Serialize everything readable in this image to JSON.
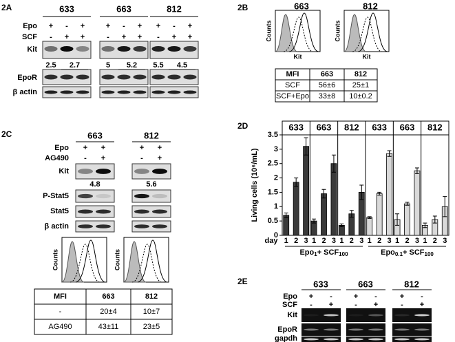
{
  "panel_2a": {
    "label": "2A",
    "row_labels": {
      "epo": "Epo",
      "scf": "SCF",
      "kit": "Kit",
      "epor": "EpoR",
      "actin": "β actin"
    },
    "groups": [
      {
        "name": "633",
        "epo": [
          "+",
          "-",
          "+"
        ],
        "scf": [
          "-",
          "+",
          "+"
        ],
        "ratios": [
          "2.5",
          "2.7"
        ]
      },
      {
        "name": "663",
        "epo": [
          "+",
          "-",
          "+"
        ],
        "scf": [
          "-",
          "+",
          "+"
        ],
        "ratios": [
          "5",
          "5.2"
        ]
      },
      {
        "name": "812",
        "epo": [
          "+",
          "-",
          "+"
        ],
        "scf": [
          "-",
          "+",
          "+"
        ],
        "ratios": [
          "5.5",
          "4.5"
        ]
      }
    ]
  },
  "panel_2b": {
    "label": "2B",
    "y_label": "Counts",
    "x_label": "Kit",
    "histograms": [
      "663",
      "812"
    ],
    "table": {
      "header": [
        "MFI",
        "663",
        "812"
      ],
      "rows": [
        [
          "SCF",
          "56±6",
          "25±1"
        ],
        [
          "SCF+Epo",
          "33±8",
          "10±0.2"
        ]
      ]
    }
  },
  "panel_2c": {
    "label": "2C",
    "row_labels": {
      "epo": "Epo",
      "ag490": "AG490",
      "kit": "Kit",
      "pstat5": "P-Stat5",
      "stat5": "Stat5",
      "actin": "β actin"
    },
    "groups": [
      {
        "name": "663",
        "epo": [
          "+",
          "+"
        ],
        "ag490": [
          "-",
          "+"
        ],
        "ratio": "4.8"
      },
      {
        "name": "812",
        "epo": [
          "+",
          "+"
        ],
        "ag490": [
          "-",
          "+"
        ],
        "ratio": "5.6"
      }
    ],
    "y_label": "Counts",
    "table": {
      "header": [
        "MFI",
        "663",
        "812"
      ],
      "rows": [
        [
          "-",
          "20±4",
          "10±7"
        ],
        [
          "AG490",
          "43±11",
          "23±5"
        ]
      ]
    }
  },
  "chart_data": {
    "type": "bar",
    "label": "2D",
    "y_label": "Living cells (10⁶/mL)",
    "x_label": "day",
    "categories": [
      "1",
      "2",
      "3"
    ],
    "ylim": [
      0,
      3.5
    ],
    "yticks": [
      0,
      0.5,
      1,
      1.5,
      2,
      2.5,
      3,
      3.5
    ],
    "panels": [
      {
        "title": "633",
        "color": "#3a3a3a",
        "values": [
          0.7,
          1.85,
          3.1
        ],
        "errors": [
          0.08,
          0.15,
          0.3
        ]
      },
      {
        "title": "663",
        "color": "#3a3a3a",
        "values": [
          0.5,
          1.45,
          2.5
        ],
        "errors": [
          0.07,
          0.15,
          0.3
        ]
      },
      {
        "title": "812",
        "color": "#3a3a3a",
        "values": [
          0.35,
          0.75,
          1.5
        ],
        "errors": [
          0.05,
          0.12,
          0.25
        ]
      },
      {
        "title": "633",
        "color": "#d9d9d9",
        "values": [
          0.62,
          1.45,
          2.85
        ],
        "errors": [
          0.03,
          0.05,
          0.1
        ]
      },
      {
        "title": "663",
        "color": "#d9d9d9",
        "values": [
          0.55,
          1.1,
          2.25
        ],
        "errors": [
          0.2,
          0.05,
          0.1
        ]
      },
      {
        "title": "812",
        "color": "#d9d9d9",
        "values": [
          0.35,
          0.55,
          1.0
        ],
        "errors": [
          0.08,
          0.12,
          0.35
        ]
      }
    ],
    "conditions": [
      [
        "Epo",
        "1",
        "+ SCF",
        "100"
      ],
      [
        "Epo",
        "0.1",
        "+ SCF",
        "100"
      ]
    ]
  },
  "panel_2e": {
    "label": "2E",
    "row_labels": {
      "epo": "Epo",
      "scf": "SCF",
      "kit": "Kit",
      "epor": "EpoR",
      "gapdh": "gapdh"
    },
    "groups": [
      {
        "name": "633",
        "epo": [
          "+",
          "-"
        ],
        "scf": [
          "-",
          "+"
        ]
      },
      {
        "name": "663",
        "epo": [
          "+",
          "-"
        ],
        "scf": [
          "-",
          "+"
        ]
      },
      {
        "name": "812",
        "epo": [
          "+",
          "-"
        ],
        "scf": [
          "-",
          "+"
        ]
      }
    ]
  }
}
